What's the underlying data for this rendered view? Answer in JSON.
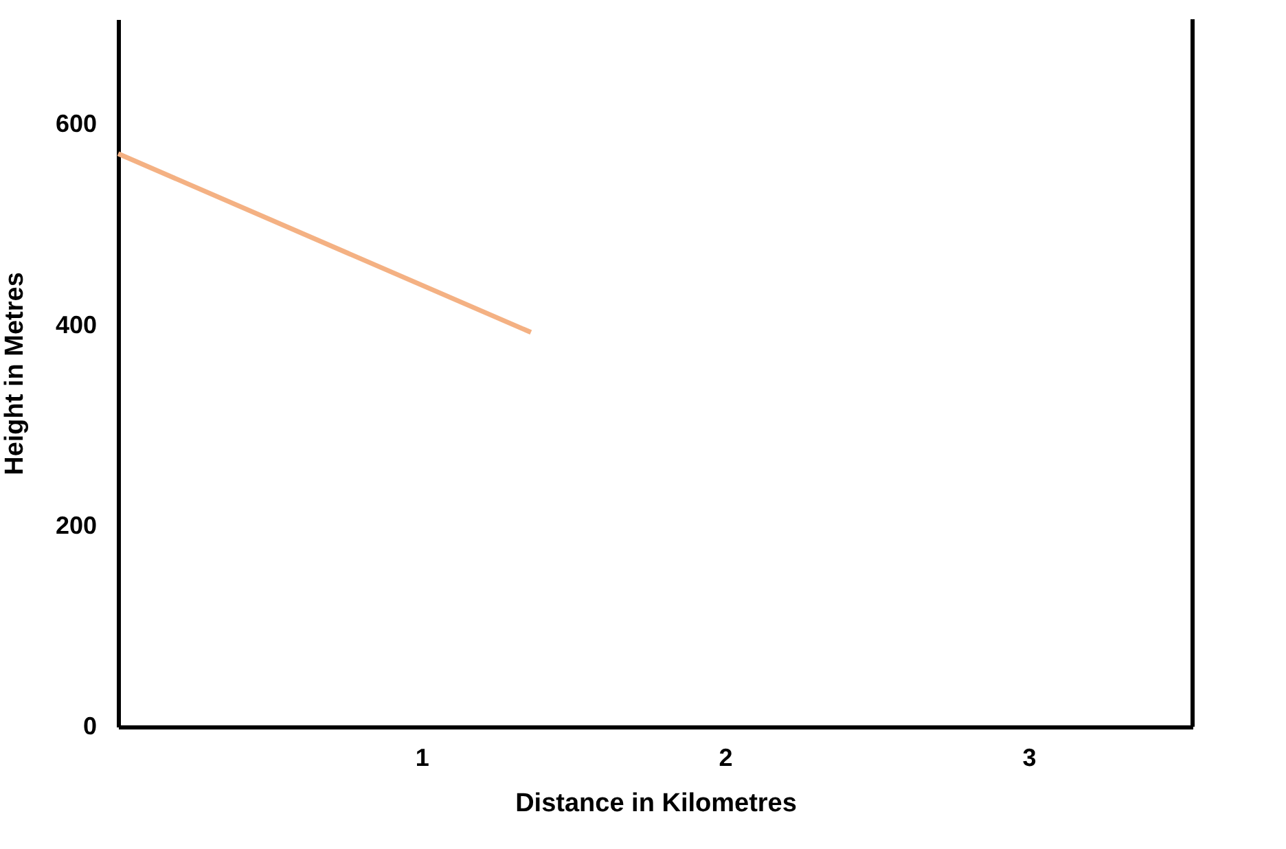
{
  "chart_data": {
    "type": "line",
    "xlabel": "Distance in Kilometres",
    "ylabel": "Height in Metres",
    "x": [
      0,
      1.36
    ],
    "series": [
      {
        "color": "#f4b183",
        "values": [
          571,
          393
        ]
      }
    ],
    "xlim": [
      0,
      3.54
    ],
    "ylim": [
      0,
      705
    ],
    "xticks": [
      1,
      2,
      3
    ],
    "yticks": [
      0,
      200,
      400,
      600
    ],
    "grid": false,
    "legend": false,
    "marker": "none",
    "line_style": "solid"
  }
}
